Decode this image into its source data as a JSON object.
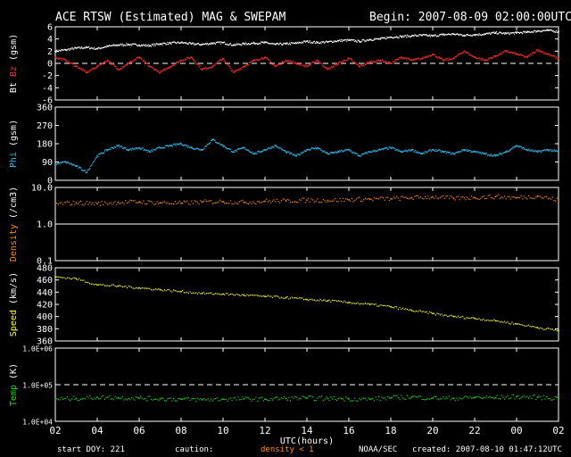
{
  "header": {
    "title": "ACE RTSW (Estimated) MAG & SWEPAM",
    "begin": "Begin: 2007-08-09 02:00:00UTC"
  },
  "footer": {
    "start_doy": "start DOY: 221",
    "caution": "caution:",
    "density_note": "density < 1",
    "agency": "NOAA/SEC",
    "created": "created: 2007-08-10 01:47:12UTC"
  },
  "colors": {
    "bt": "#ffffff",
    "bz": "#ff2a2a",
    "phi": "#35b8e8",
    "density": "#ff8c1a",
    "speed": "#ffff3a",
    "temp": "#22d822",
    "frame": "#ffffff",
    "caution": "#ff8c1a"
  },
  "chart_data": [
    {
      "type": "scatter",
      "panel": "mag",
      "title": "ACE RTSW (Estimated) MAG & SWEPAM",
      "xlabel": "UTC(hours)",
      "ylabel_parts": [
        "Bt",
        "Bz",
        "(gsm)"
      ],
      "x_ticks": [
        "02",
        "04",
        "06",
        "08",
        "10",
        "12",
        "14",
        "16",
        "18",
        "20",
        "22",
        "00",
        "02"
      ],
      "x_range_hours": [
        0,
        24
      ],
      "ylim": [
        -6,
        6
      ],
      "y_ticks": [
        "6",
        "4",
        "2",
        "0",
        "-2",
        "-4",
        "-6"
      ],
      "dashed_lines": [
        0
      ],
      "series": [
        {
          "name": "Bt",
          "color_key": "bt",
          "x": [
            0,
            0.5,
            1,
            1.5,
            2,
            2.5,
            3,
            3.5,
            4,
            4.5,
            5,
            5.5,
            6,
            6.5,
            7,
            7.5,
            8,
            8.5,
            9,
            9.5,
            10,
            10.5,
            11,
            11.5,
            12,
            12.5,
            13,
            13.5,
            14,
            14.5,
            15,
            15.5,
            16,
            16.5,
            17,
            17.5,
            18,
            18.5,
            19,
            19.5,
            20,
            20.5,
            21,
            21.5,
            22,
            22.5,
            23,
            23.5,
            24
          ],
          "y": [
            2.0,
            2.2,
            2.5,
            2.6,
            2.4,
            2.8,
            3.0,
            3.1,
            3.0,
            2.9,
            3.2,
            3.3,
            3.4,
            3.2,
            3.1,
            3.3,
            3.4,
            3.0,
            3.2,
            3.3,
            3.4,
            3.1,
            3.2,
            3.3,
            3.6,
            3.4,
            3.5,
            3.7,
            3.8,
            3.6,
            3.9,
            4.0,
            4.3,
            4.4,
            4.5,
            4.6,
            4.5,
            4.7,
            4.8,
            4.6,
            4.7,
            4.8,
            5.0,
            4.9,
            5.0,
            5.1,
            5.3,
            5.4,
            5.2
          ]
        },
        {
          "name": "Bz",
          "color_key": "bz",
          "x": [
            0,
            0.5,
            1,
            1.5,
            2,
            2.5,
            3,
            3.5,
            4,
            4.5,
            5,
            5.5,
            6,
            6.5,
            7,
            7.5,
            8,
            8.5,
            9,
            9.5,
            10,
            10.5,
            11,
            11.5,
            12,
            12.5,
            13,
            13.5,
            14,
            14.5,
            15,
            15.5,
            16,
            16.5,
            17,
            17.5,
            18,
            18.5,
            19,
            19.5,
            20,
            20.5,
            21,
            21.5,
            22,
            22.5,
            23,
            23.5,
            24
          ],
          "y": [
            1.0,
            0.5,
            -0.5,
            -1.5,
            -0.5,
            0.5,
            -1.0,
            0.0,
            1.0,
            -0.5,
            -1.5,
            -0.5,
            0.5,
            1.0,
            -1.0,
            -0.5,
            0.8,
            -1.5,
            -0.5,
            0.5,
            1.0,
            -0.5,
            0.5,
            0.0,
            -0.5,
            0.5,
            -1.0,
            0.0,
            0.8,
            -0.5,
            0.2,
            0.5,
            0.0,
            1.0,
            0.5,
            0.8,
            1.5,
            0.5,
            0.8,
            2.0,
            1.0,
            0.5,
            1.2,
            2.0,
            1.5,
            1.0,
            2.2,
            1.5,
            0.8
          ]
        }
      ]
    },
    {
      "type": "scatter",
      "panel": "phi",
      "ylabel": "Phi (gsm)",
      "ylim": [
        0,
        360
      ],
      "y_ticks": [
        "360",
        "270",
        "180",
        "90",
        "0"
      ],
      "series": [
        {
          "name": "Phi",
          "color_key": "phi",
          "x": [
            0,
            0.5,
            1,
            1.5,
            2,
            2.5,
            3,
            3.5,
            4,
            4.5,
            5,
            5.5,
            6,
            6.5,
            7,
            7.5,
            8,
            8.5,
            9,
            9.5,
            10,
            10.5,
            11,
            11.5,
            12,
            12.5,
            13,
            13.5,
            14,
            14.5,
            15,
            15.5,
            16,
            16.5,
            17,
            17.5,
            18,
            18.5,
            19,
            19.5,
            20,
            20.5,
            21,
            21.5,
            22,
            22.5,
            23,
            23.5,
            24
          ],
          "y": [
            80,
            90,
            70,
            40,
            120,
            150,
            170,
            150,
            160,
            140,
            160,
            170,
            180,
            160,
            150,
            200,
            170,
            140,
            160,
            130,
            150,
            170,
            140,
            120,
            150,
            160,
            130,
            140,
            150,
            120,
            140,
            150,
            160,
            140,
            150,
            130,
            150,
            140,
            130,
            150,
            140,
            130,
            120,
            140,
            170,
            150,
            140,
            150,
            140
          ]
        }
      ]
    },
    {
      "type": "scatter",
      "panel": "density",
      "ylabel": "Density (/cm3)",
      "y_scale": "log",
      "ylim": [
        0.1,
        10
      ],
      "y_ticks": [
        "10.0",
        "1.0",
        "0.1"
      ],
      "series": [
        {
          "name": "Density",
          "color_key": "density",
          "x": [
            0,
            1,
            2,
            3,
            4,
            5,
            6,
            7,
            8,
            9,
            10,
            11,
            12,
            13,
            14,
            15,
            16,
            17,
            18,
            19,
            20,
            21,
            22,
            23,
            24
          ],
          "y": [
            3.5,
            3.8,
            3.6,
            3.9,
            4.0,
            3.8,
            3.7,
            4.0,
            4.1,
            3.9,
            4.2,
            4.3,
            4.5,
            4.4,
            4.6,
            4.8,
            4.9,
            5.2,
            5.5,
            5.0,
            5.3,
            5.6,
            5.2,
            5.8,
            4.5
          ]
        }
      ]
    },
    {
      "type": "scatter",
      "panel": "speed",
      "ylabel": "Speed (km/s)",
      "ylim": [
        360,
        480
      ],
      "y_ticks": [
        "480",
        "460",
        "440",
        "420",
        "400",
        "380",
        "360"
      ],
      "series": [
        {
          "name": "Speed",
          "color_key": "speed",
          "x": [
            0,
            1,
            2,
            3,
            4,
            5,
            6,
            7,
            8,
            9,
            10,
            11,
            12,
            13,
            14,
            15,
            16,
            17,
            18,
            19,
            20,
            21,
            22,
            23,
            24
          ],
          "y": [
            465,
            462,
            452,
            450,
            447,
            444,
            441,
            438,
            437,
            435,
            433,
            431,
            428,
            426,
            423,
            420,
            416,
            410,
            405,
            400,
            397,
            393,
            388,
            382,
            377
          ]
        }
      ]
    },
    {
      "type": "scatter",
      "panel": "temp",
      "ylabel": "Temp (K)",
      "y_scale": "log",
      "ylim": [
        10000,
        1000000
      ],
      "y_ticks": [
        "1.0E+06",
        "1.0E+05",
        "1.0E+04"
      ],
      "dashed_lines": [
        100000
      ],
      "series": [
        {
          "name": "Temp",
          "color_key": "temp",
          "x": [
            0,
            1,
            2,
            3,
            4,
            5,
            6,
            7,
            8,
            9,
            10,
            11,
            12,
            13,
            14,
            15,
            16,
            17,
            18,
            19,
            20,
            21,
            22,
            23,
            24
          ],
          "y": [
            40000,
            42000,
            45000,
            44000,
            43000,
            41000,
            40000,
            39000,
            40000,
            41000,
            40000,
            42000,
            43000,
            42000,
            41000,
            40000,
            44000,
            46000,
            43000,
            42000,
            45000,
            44000,
            47000,
            45000,
            42000
          ]
        }
      ]
    }
  ]
}
